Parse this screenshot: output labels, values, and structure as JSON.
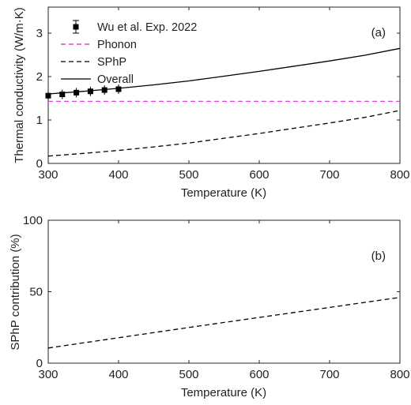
{
  "chart_data": [
    {
      "panel": "(a)",
      "type": "line",
      "xlabel": "Temperature (K)",
      "ylabel": "Thermal conductivity (W/m·K)",
      "xlim": [
        300,
        800
      ],
      "ylim": [
        0,
        3.6
      ],
      "xticks": [
        "300",
        "400",
        "500",
        "600",
        "700",
        "800"
      ],
      "yticks": [
        "0",
        "1",
        "2",
        "3"
      ],
      "grid": false,
      "legend_position": "top-left",
      "series": [
        {
          "name": "Wu et al. Exp. 2022",
          "style": "markers-errorbars",
          "color": "#000000",
          "x": [
            300,
            320,
            340,
            360,
            380,
            400
          ],
          "y": [
            1.56,
            1.59,
            1.63,
            1.66,
            1.69,
            1.71
          ]
        },
        {
          "name": "Phonon",
          "style": "dashed",
          "color": "#e040e0",
          "x": [
            300,
            400,
            500,
            600,
            700,
            800
          ],
          "y": [
            1.43,
            1.43,
            1.43,
            1.43,
            1.43,
            1.43
          ]
        },
        {
          "name": "SPhP",
          "style": "dashed",
          "color": "#000000",
          "x": [
            300,
            350,
            400,
            450,
            500,
            550,
            600,
            650,
            700,
            750,
            800
          ],
          "y": [
            0.17,
            0.23,
            0.3,
            0.38,
            0.47,
            0.58,
            0.69,
            0.81,
            0.93,
            1.06,
            1.22
          ]
        },
        {
          "name": "Overall",
          "style": "solid",
          "color": "#000000",
          "x": [
            300,
            350,
            400,
            450,
            500,
            550,
            600,
            650,
            700,
            750,
            800
          ],
          "y": [
            1.6,
            1.66,
            1.73,
            1.81,
            1.9,
            2.01,
            2.12,
            2.24,
            2.36,
            2.49,
            2.65
          ]
        }
      ]
    },
    {
      "panel": "(b)",
      "type": "line",
      "xlabel": "Temperature (K)",
      "ylabel": "SPhP contribution (%)",
      "xlim": [
        300,
        800
      ],
      "ylim": [
        0,
        100
      ],
      "xticks": [
        "300",
        "400",
        "500",
        "600",
        "700",
        "800"
      ],
      "yticks": [
        "0",
        "50",
        "100"
      ],
      "grid": false,
      "series": [
        {
          "style": "dashed",
          "color": "#000000",
          "x": [
            300,
            400,
            500,
            600,
            700,
            800
          ],
          "y": [
            10.6,
            17.8,
            25.0,
            32.0,
            39.0,
            46.0
          ]
        }
      ]
    }
  ]
}
